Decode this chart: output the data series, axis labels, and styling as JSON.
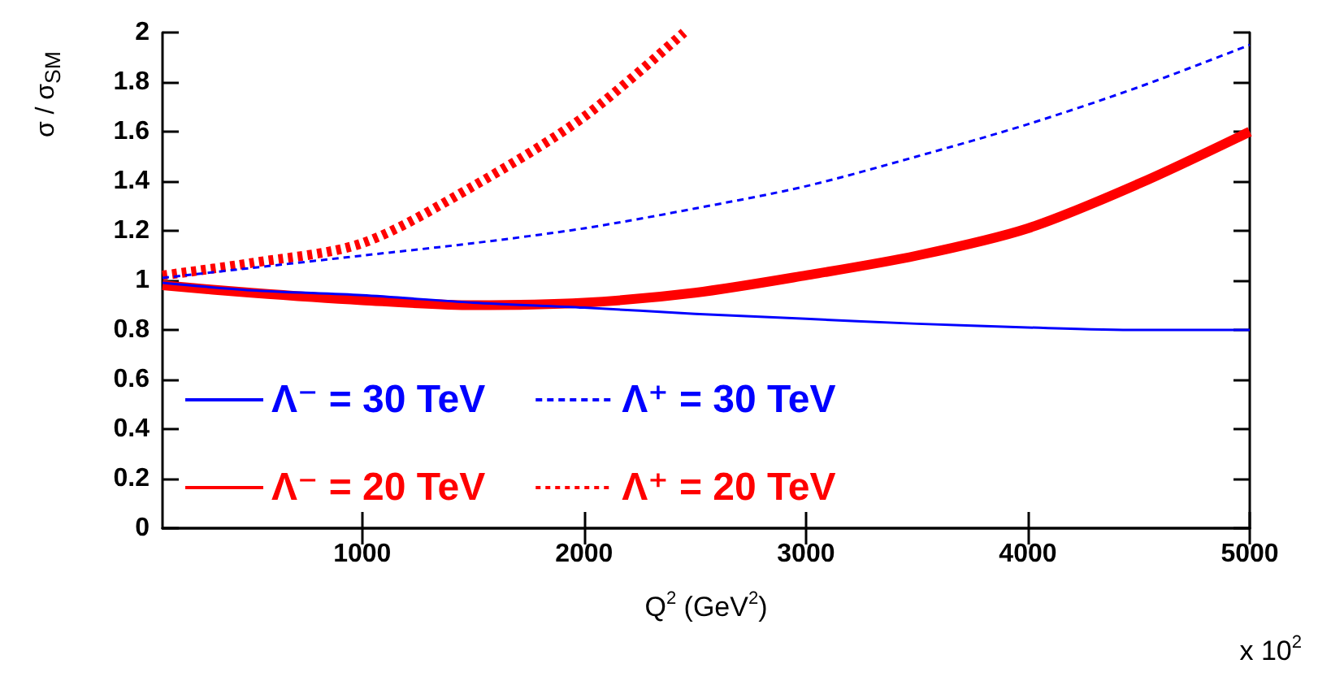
{
  "chart_data": {
    "type": "line",
    "xlabel": "Q$^{2}$ (GeV$^{2}$)",
    "ylabel": "σ / σ$_{SM}$",
    "annotations": [
      "x 10$^{2}$"
    ],
    "x": [
      100,
      500,
      1000,
      1500,
      2000,
      2500,
      3000,
      3500,
      4000,
      4500,
      5000
    ],
    "series": [
      {
        "name": "Λ⁻ = 30 TeV",
        "color": "#0000ff",
        "line_style": "solid",
        "values": [
          0.99,
          0.96,
          0.94,
          0.91,
          0.89,
          0.865,
          0.845,
          0.825,
          0.81,
          0.8,
          0.8
        ]
      },
      {
        "name": "Λ⁺ = 30 TeV",
        "color": "#0000ff",
        "line_style": "dashed",
        "values": [
          1.01,
          1.05,
          1.1,
          1.15,
          1.21,
          1.29,
          1.38,
          1.5,
          1.63,
          1.78,
          1.95
        ]
      },
      {
        "name": "Λ⁻ = 20 TeV",
        "color": "#ff0000",
        "line_style": "solid",
        "values": [
          0.98,
          0.95,
          0.92,
          0.9,
          0.91,
          0.95,
          1.02,
          1.1,
          1.21,
          1.39,
          1.6
        ]
      },
      {
        "name": "Λ⁺ = 20 TeV",
        "color": "#ff0000",
        "line_style": "dotted",
        "x": [
          100,
          500,
          1000,
          1500,
          2000,
          2450
        ],
        "values": [
          1.02,
          1.07,
          1.15,
          1.38,
          1.66,
          2.0
        ]
      }
    ],
    "xlim": [
      100,
      5000
    ],
    "xticks": [
      1000,
      2000,
      3000,
      4000,
      5000
    ],
    "ylim": [
      0,
      2
    ],
    "yticks": [
      0,
      0.2,
      0.4,
      0.6,
      0.8,
      1,
      1.2,
      1.4,
      1.6,
      1.8,
      2
    ],
    "grid": false,
    "legend": "bottom left",
    "marker": "none"
  }
}
